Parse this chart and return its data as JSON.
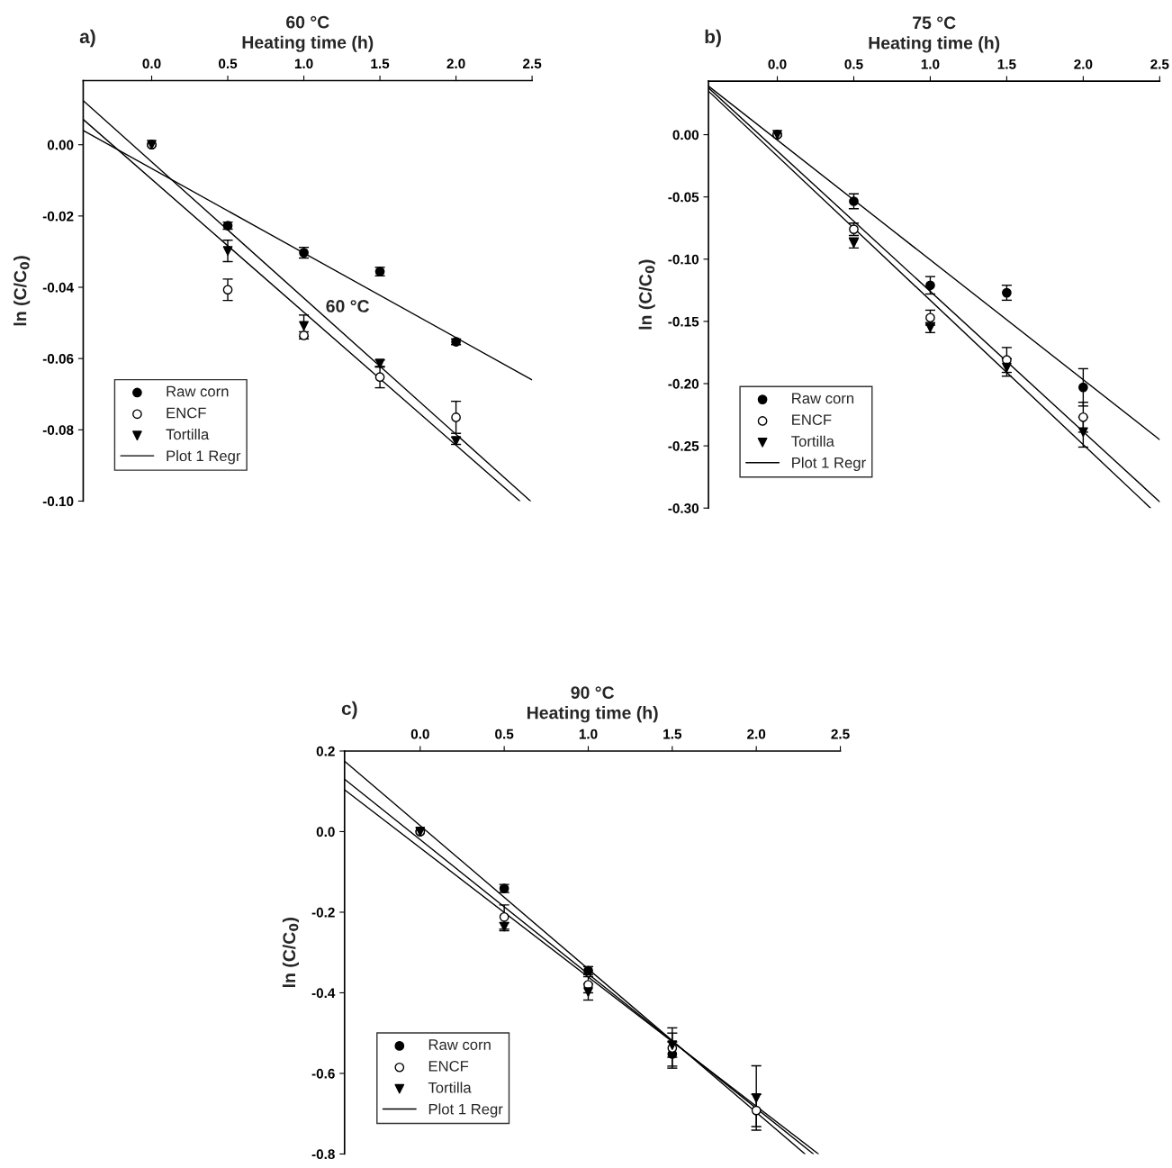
{
  "chart_data": [
    {
      "type": "scatter",
      "title": "60 °C",
      "xlabel": "Heating time (h)",
      "ylabel": "ln (C/C$_{0}$)",
      "annotations": [
        "a)",
        "60 °C"
      ],
      "xlim": [
        -0.45,
        2.5
      ],
      "ylim": [
        -0.1,
        0.018
      ],
      "xticks": [
        {
          "value": 0,
          "label": "0.0"
        },
        {
          "value": 0.5,
          "label": "0.5"
        },
        {
          "value": 1,
          "label": "1.0"
        },
        {
          "value": 1.5,
          "label": "1.5"
        },
        {
          "value": 2,
          "label": "2.0"
        },
        {
          "value": 2.5,
          "label": "2.5"
        }
      ],
      "yticks": [
        {
          "value": 0,
          "label": "0.00"
        },
        {
          "value": -0.02,
          "label": "-0.02"
        },
        {
          "value": -0.04,
          "label": "-0.04"
        },
        {
          "value": -0.06,
          "label": "-0.06"
        },
        {
          "value": -0.08,
          "label": "-0.08"
        },
        {
          "value": -0.1,
          "label": "-0.10"
        }
      ],
      "legend": "bottom left",
      "series": [
        {
          "name": "Raw corn",
          "color": "#000000",
          "marker": "circle",
          "x": [
            0,
            0.5,
            1,
            1.5,
            2
          ],
          "values": [
            0,
            -0.0227,
            -0.0303,
            -0.0356,
            -0.0553
          ],
          "errors": [
            null,
            0.001,
            0.0015,
            0.0012,
            0.0008
          ]
        },
        {
          "name": "ENCF",
          "color": "#ffffff",
          "marker": "circle",
          "x": [
            0,
            0.5,
            1,
            1.5,
            2
          ],
          "values": [
            0,
            -0.0407,
            -0.0535,
            -0.0652,
            -0.0765
          ],
          "errors": [
            null,
            0.003,
            0.001,
            0.003,
            0.0045
          ]
        },
        {
          "name": "Tortilla",
          "color": "#000000",
          "marker": "triangle",
          "x": [
            0,
            0.5,
            1,
            1.5,
            2
          ],
          "values": [
            0,
            -0.0298,
            -0.0508,
            -0.0614,
            -0.0831
          ],
          "errors": [
            null,
            0.003,
            0.003,
            0.001,
            0.001
          ]
        },
        {
          "name": "Plot 1 Regr",
          "type": "line",
          "color": "#000000",
          "line_style": "solid",
          "x": [
            -0.45,
            2.5
          ],
          "values": [
            0.004,
            -0.066
          ]
        },
        {
          "type": "line",
          "color": "#000000",
          "line_style": "solid",
          "x": [
            -0.45,
            2.49
          ],
          "values": [
            0.0124,
            -0.1
          ]
        },
        {
          "type": "line",
          "color": "#000000",
          "line_style": "solid",
          "x": [
            -0.45,
            2.42
          ],
          "values": [
            0.0071,
            -0.1
          ]
        }
      ]
    },
    {
      "type": "scatter",
      "title": "75 °C",
      "xlabel": "Heating time (h)",
      "ylabel": "ln (C/C$_{0}$)",
      "annotations": [
        "b)"
      ],
      "xlim": [
        -0.45,
        2.5
      ],
      "ylim": [
        -0.3,
        0.043
      ],
      "xticks": [
        {
          "value": 0,
          "label": "0.0"
        },
        {
          "value": 0.5,
          "label": "0.5"
        },
        {
          "value": 1,
          "label": "1.0"
        },
        {
          "value": 1.5,
          "label": "1.5"
        },
        {
          "value": 2,
          "label": "2.0"
        },
        {
          "value": 2.5,
          "label": "2.5"
        }
      ],
      "yticks": [
        {
          "value": 0,
          "label": "0.00"
        },
        {
          "value": -0.05,
          "label": "-0.05"
        },
        {
          "value": -0.1,
          "label": "-0.10"
        },
        {
          "value": -0.15,
          "label": "-0.15"
        },
        {
          "value": -0.2,
          "label": "-0.20"
        },
        {
          "value": -0.25,
          "label": "-0.25"
        },
        {
          "value": -0.3,
          "label": "-0.30"
        }
      ],
      "legend": "bottom left",
      "series": [
        {
          "name": "Raw corn",
          "color": "#000000",
          "marker": "circle",
          "x": [
            0,
            0.5,
            1,
            1.5,
            2
          ],
          "values": [
            0,
            -0.0535,
            -0.121,
            -0.127,
            -0.203
          ],
          "errors": [
            null,
            0.006,
            0.007,
            0.006,
            0.015
          ]
        },
        {
          "name": "ENCF",
          "color": "#ffffff",
          "marker": "circle",
          "x": [
            0,
            0.5,
            1,
            1.5,
            2
          ],
          "values": [
            0,
            -0.076,
            -0.147,
            -0.181,
            -0.227
          ],
          "errors": [
            null,
            0.005,
            0.006,
            0.01,
            0.012
          ]
        },
        {
          "name": "Tortilla",
          "color": "#000000",
          "marker": "triangle",
          "x": [
            0,
            0.5,
            1,
            1.5,
            2
          ],
          "values": [
            0,
            -0.087,
            -0.155,
            -0.187,
            -0.239
          ],
          "errors": [
            null,
            0.004,
            0.004,
            0.007,
            0.012
          ]
        },
        {
          "name": "Plot 1 Regr",
          "type": "line",
          "color": "#000000",
          "line_style": "solid",
          "x": [
            -0.45,
            2.5
          ],
          "values": [
            0.039,
            -0.245
          ]
        },
        {
          "type": "line",
          "color": "#000000",
          "line_style": "solid",
          "x": [
            -0.45,
            2.5
          ],
          "values": [
            0.0376,
            -0.295
          ]
        },
        {
          "type": "line",
          "color": "#000000",
          "line_style": "solid",
          "x": [
            -0.45,
            2.44
          ],
          "values": [
            0.035,
            -0.3
          ]
        }
      ]
    },
    {
      "type": "scatter",
      "title": "90 °C",
      "xlabel": "Heating time (h)",
      "ylabel": "ln (C/C$_{0}$)",
      "annotations": [
        "c)"
      ],
      "xlim": [
        -0.45,
        2.5
      ],
      "ylim": [
        -0.8,
        0.2
      ],
      "xticks": [
        {
          "value": 0,
          "label": "0.0"
        },
        {
          "value": 0.5,
          "label": "0.5"
        },
        {
          "value": 1,
          "label": "1.0"
        },
        {
          "value": 1.5,
          "label": "1.5"
        },
        {
          "value": 2,
          "label": "2.0"
        },
        {
          "value": 2.5,
          "label": "2.5"
        }
      ],
      "yticks": [
        {
          "value": 0.2,
          "label": "0.2"
        },
        {
          "value": 0,
          "label": "0.0"
        },
        {
          "value": -0.2,
          "label": "-0.2"
        },
        {
          "value": -0.4,
          "label": "-0.4"
        },
        {
          "value": -0.6,
          "label": "-0.6"
        },
        {
          "value": -0.8,
          "label": "-0.8"
        }
      ],
      "legend": "bottom left",
      "series": [
        {
          "name": "Raw corn",
          "color": "#000000",
          "marker": "circle",
          "x": [
            0,
            0.5,
            1,
            1.5
          ],
          "values": [
            0,
            -0.141,
            -0.345,
            -0.552
          ],
          "errors": [
            null,
            0.01,
            0.01,
            0.03
          ]
        },
        {
          "name": "ENCF",
          "color": "#ffffff",
          "marker": "circle",
          "x": [
            0,
            0.5,
            1,
            1.5,
            2
          ],
          "values": [
            0,
            -0.212,
            -0.38,
            -0.537,
            -0.692
          ],
          "errors": [
            null,
            0.03,
            0.02,
            0.05,
            0.04
          ]
        },
        {
          "name": "Tortilla",
          "color": "#000000",
          "marker": "triangle",
          "x": [
            0,
            0.5,
            1,
            1.5,
            2
          ],
          "values": [
            0,
            -0.236,
            -0.398,
            -0.53,
            -0.661
          ],
          "errors": [
            null,
            0.01,
            0.02,
            0.03,
            0.08
          ]
        },
        {
          "name": "Plot 1 Regr",
          "type": "line",
          "color": "#000000",
          "line_style": "solid",
          "x": [
            -0.45,
            2.29
          ],
          "values": [
            0.175,
            -0.8
          ]
        },
        {
          "type": "line",
          "color": "#000000",
          "line_style": "solid",
          "x": [
            -0.45,
            2.34
          ],
          "values": [
            0.13,
            -0.8
          ]
        },
        {
          "type": "line",
          "color": "#000000",
          "line_style": "solid",
          "x": [
            -0.45,
            2.37
          ],
          "values": [
            0.104,
            -0.8
          ]
        }
      ]
    }
  ]
}
